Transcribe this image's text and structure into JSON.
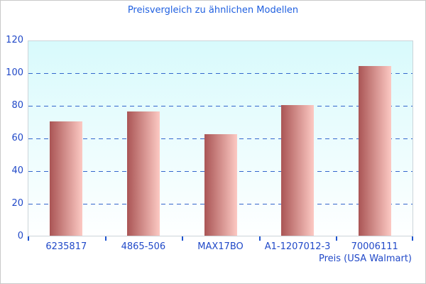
{
  "chart_data": {
    "type": "bar",
    "title": "Preisvergleich zu ähnlichen Modellen",
    "categories": [
      "6235817",
      "4865-506",
      "MAX17BO",
      "A1-1207012-3",
      "70006111"
    ],
    "values": [
      70,
      76,
      62,
      80,
      104
    ],
    "xlabel": "Preis (USA Walmart)",
    "ylabel": "",
    "ylim": [
      0,
      120
    ],
    "yticks": [
      0,
      20,
      40,
      60,
      80,
      100,
      120
    ],
    "grid": "horizontal-dashed",
    "legend": "none",
    "colors": {
      "title": "#2060e0",
      "tick_label": "#2149c8",
      "gridline": "#3366cc",
      "axis_tick": "#2055d0",
      "plot_border": "#ccd4d9",
      "plot_bg_top": "#d8fafc",
      "plot_bg_bottom": "#feffff",
      "bar_gradient_left": "#aa5555",
      "bar_gradient_right": "#fcc9c3",
      "outer_border": "#c9c9c9"
    }
  }
}
